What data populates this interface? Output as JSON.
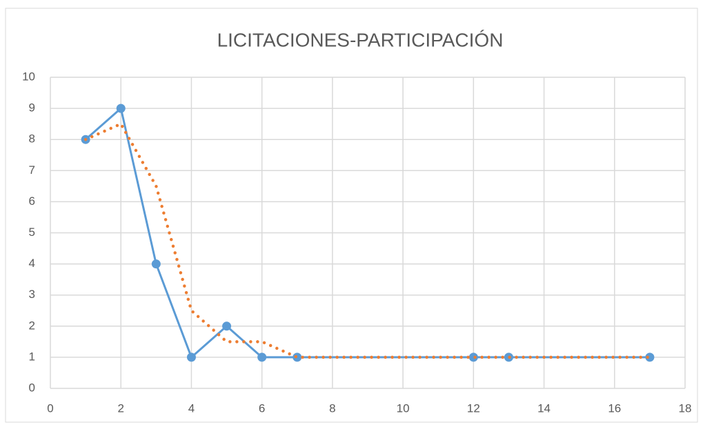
{
  "chart_data": {
    "type": "scatter-line",
    "title": "LICITACIONES-PARTICIPACIÓN",
    "series": [
      {
        "color": "#5b9bd5",
        "style": "solid-markers",
        "x": [
          1,
          2,
          3,
          4,
          5,
          6,
          7,
          12,
          13,
          17
        ],
        "values": [
          8,
          9,
          4,
          1,
          2,
          1,
          1,
          1,
          1,
          1
        ]
      },
      {
        "color": "#ed7d31",
        "style": "dotted",
        "x": [
          1,
          2,
          3,
          4,
          5,
          6,
          7,
          12,
          13,
          17
        ],
        "values": [
          8,
          8.5,
          6.5,
          2.5,
          1.5,
          1.5,
          1,
          1,
          1,
          1
        ]
      }
    ],
    "xlim": [
      0,
      18
    ],
    "xticks": [
      0,
      2,
      4,
      6,
      8,
      10,
      12,
      14,
      16,
      18
    ],
    "ylim": [
      0,
      10
    ],
    "yticks": [
      0,
      1,
      2,
      3,
      4,
      5,
      6,
      7,
      8,
      9,
      10
    ],
    "grid": true
  }
}
